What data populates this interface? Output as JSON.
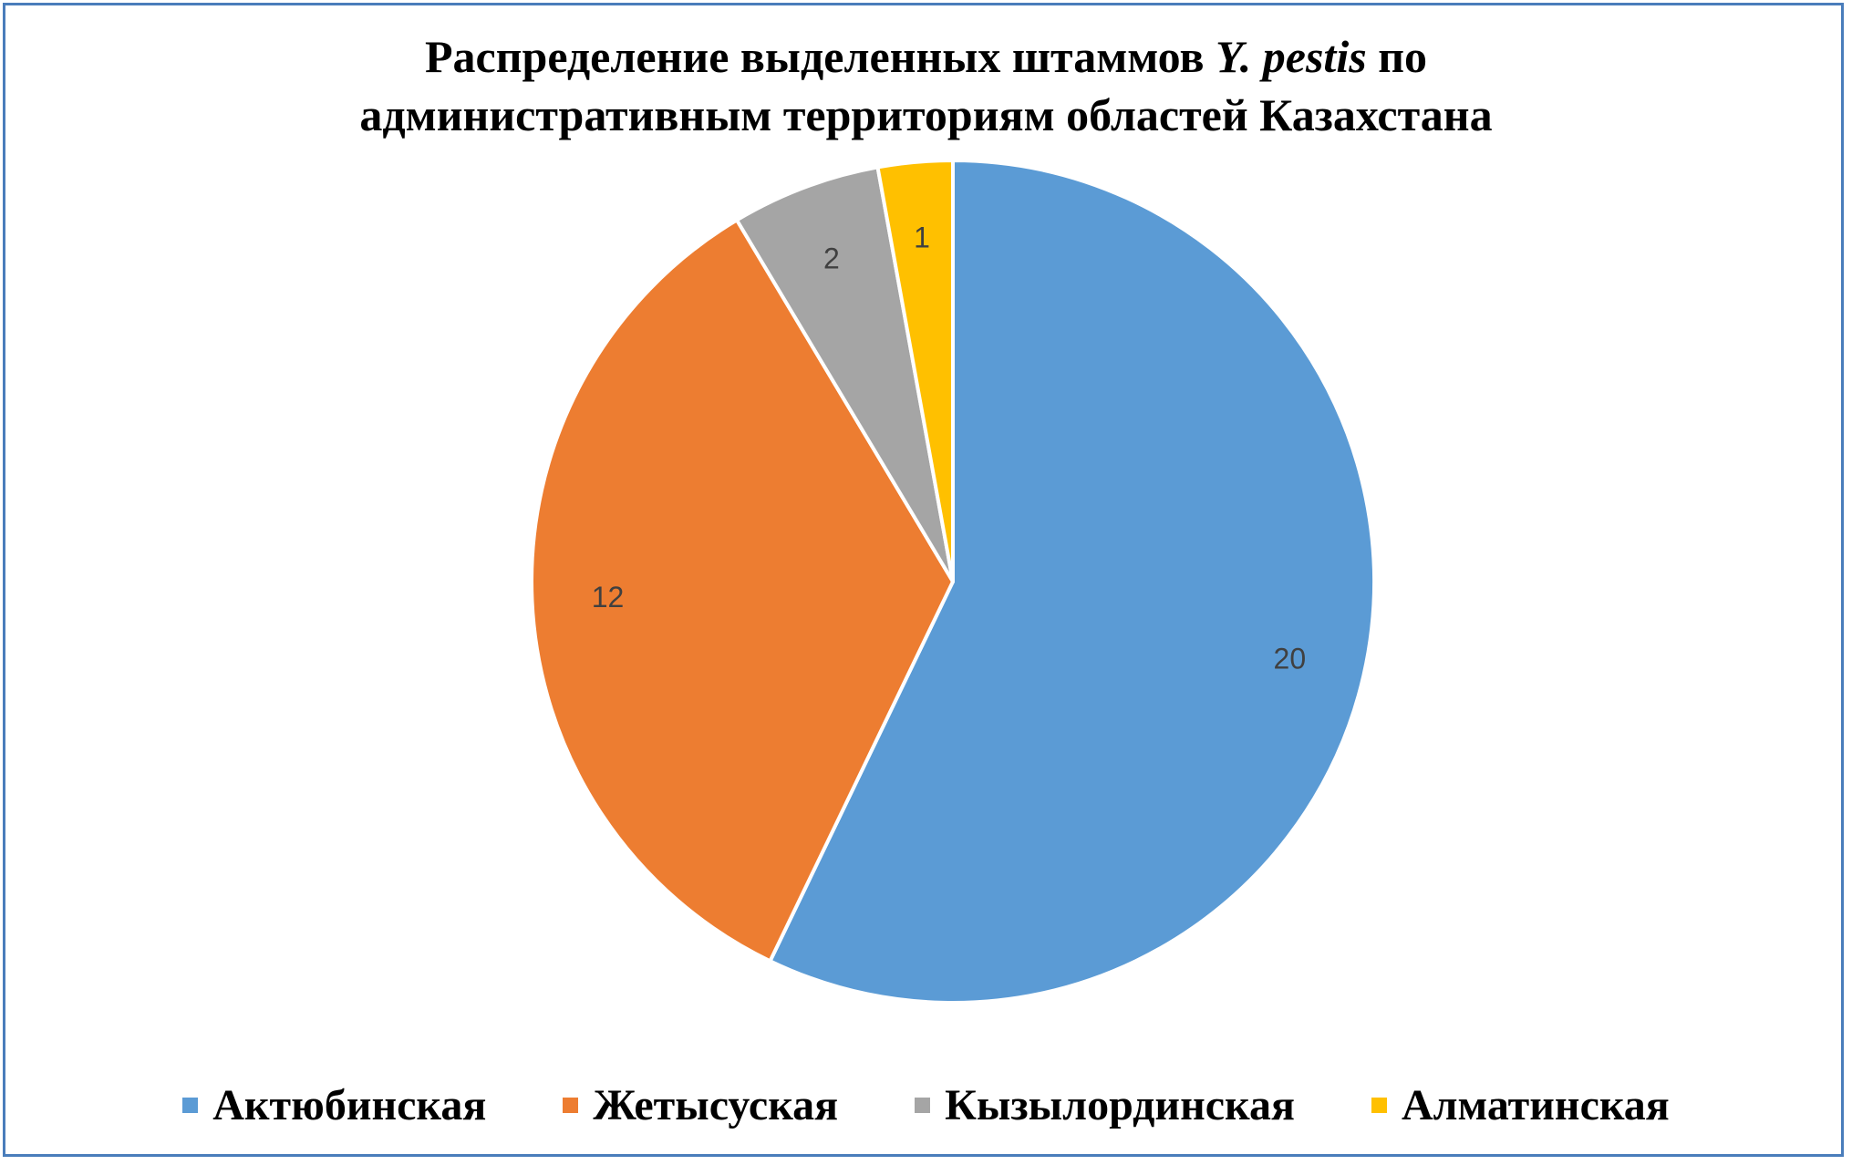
{
  "chart_data": {
    "type": "pie",
    "title_line1_pre": "Распределение выделенных штаммов",
    "title_line1_italic": "Y. pestis",
    "title_line1_post": "по",
    "title_line2": "административным территориям областей Казахстана",
    "categories": [
      "Актюбинская",
      "Жетысуская",
      "Кызылординская",
      "Алматинская"
    ],
    "values": [
      20,
      12,
      2,
      1
    ],
    "colors": [
      "#5b9bd5",
      "#ed7d31",
      "#a5a5a5",
      "#ffc000"
    ],
    "data_labels": [
      "20",
      "12",
      "2",
      "1"
    ],
    "legend_position": "bottom",
    "start_angle_deg": 0,
    "direction": "clockwise"
  }
}
